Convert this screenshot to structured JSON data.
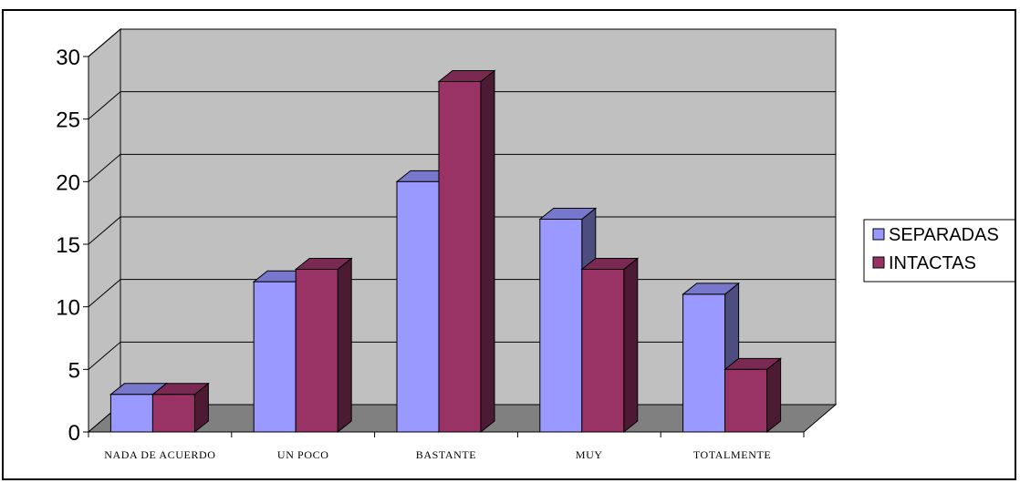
{
  "chart_data": {
    "type": "bar",
    "style": "3d-clustered-column",
    "title": "",
    "xlabel": "",
    "ylabel": "",
    "categories": [
      "NADA DE ACUERDO",
      "UN POCO",
      "BASTANTE",
      "MUY",
      "TOTALMENTE"
    ],
    "series": [
      {
        "name": "SEPARADAS",
        "values": [
          3,
          12,
          20,
          17,
          11
        ],
        "color": "#9999ff",
        "side_color": "#4d4d80",
        "top_color": "#7777cc"
      },
      {
        "name": "INTACTAS",
        "values": [
          3,
          13,
          28,
          13,
          5
        ],
        "color": "#993366",
        "side_color": "#4d1a33",
        "top_color": "#7a2952"
      }
    ],
    "ylim": [
      0,
      30
    ],
    "yticks": [
      "0",
      "5",
      "10",
      "15",
      "20",
      "25",
      "30"
    ],
    "grid": true,
    "legend_position": "right",
    "wall_color": "#c0c0c0",
    "floor_color": "#808080"
  }
}
